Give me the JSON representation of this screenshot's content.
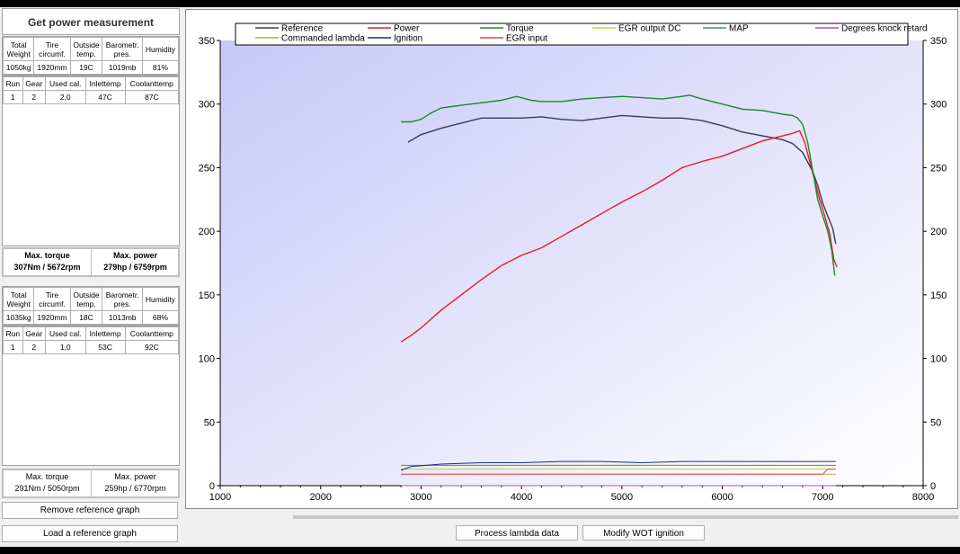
{
  "left_panel": {
    "title": "Get power measurement",
    "measurement_1": {
      "conditions": {
        "headers": [
          "Total\nWeight",
          "Tire\ncircumf.",
          "Outside\ntemp.",
          "Barometr.\npres.",
          "Humidity"
        ],
        "values": [
          "1050kg",
          "1920mm",
          "19C",
          "1019mb",
          "81%"
        ]
      },
      "run": {
        "headers": [
          "Run",
          "Gear",
          "Used cal.",
          "Inlettemp",
          "Coolanttemp"
        ],
        "values": [
          "1",
          "2",
          "2,0",
          "47C",
          "87C"
        ]
      },
      "max_torque_label": "Max. torque",
      "max_torque_value": "307Nm / 5672rpm",
      "max_power_label": "Max. power",
      "max_power_value": "279hp / 6759rpm"
    },
    "measurement_2": {
      "conditions": {
        "headers": [
          "Total\nWeight",
          "Tire\ncircumf.",
          "Outside\ntemp.",
          "Barometr.\npres.",
          "Humidity"
        ],
        "values": [
          "1035kg",
          "1920mm",
          "18C",
          "1013mb",
          "68%"
        ]
      },
      "run": {
        "headers": [
          "Run",
          "Gear",
          "Used cal.",
          "Inlettemp",
          "Coolanttemp"
        ],
        "values": [
          "1",
          "2",
          "1,0",
          "53C",
          "92C"
        ]
      },
      "max_torque_label": "Max. torque",
      "max_torque_value": "291Nm / 5050rpm",
      "max_power_label": "Max. power",
      "max_power_value": "259hp / 6770rpm"
    },
    "remove_reference_label": "Remove reference graph",
    "load_reference_label": "Load a reference graph"
  },
  "bottom_buttons": {
    "process_lambda_label": "Process lambda data",
    "modify_wot_label": "Modify WOT ignition"
  },
  "chart_data": {
    "type": "line",
    "title": "",
    "xlabel": "",
    "ylabel": "",
    "xlim": [
      1000,
      8000
    ],
    "ylim": [
      0,
      350
    ],
    "x_ticks": [
      1000,
      2000,
      3000,
      4000,
      5000,
      6000,
      7000,
      8000
    ],
    "y_ticks": [
      0,
      50,
      100,
      150,
      200,
      250,
      300,
      350
    ],
    "grid": false,
    "legend_position": "top",
    "colors": {
      "background_top": "#c8c8f8",
      "background_bottom": "#ffffff"
    },
    "series": [
      {
        "name": "Reference",
        "color": "#3a3a4e",
        "x": [
          2870,
          3000,
          3200,
          3400,
          3600,
          3800,
          4000,
          4200,
          4400,
          4600,
          4800,
          5000,
          5200,
          5400,
          5600,
          5800,
          6000,
          6200,
          6400,
          6600,
          6700,
          6800,
          6900,
          6950,
          7000,
          7050,
          7100,
          7130
        ],
        "y": [
          270,
          276,
          281,
          285,
          289,
          289,
          289,
          290,
          288,
          287,
          289,
          291,
          290,
          289,
          289,
          287,
          283,
          278,
          275,
          272,
          269,
          262,
          247,
          236,
          222,
          212,
          202,
          190
        ]
      },
      {
        "name": "Power",
        "color": "#e81c24",
        "x": [
          2800,
          2900,
          3000,
          3200,
          3400,
          3600,
          3800,
          4000,
          4200,
          4400,
          4600,
          4800,
          5000,
          5200,
          5400,
          5600,
          5800,
          6000,
          6200,
          6400,
          6600,
          6700,
          6770,
          6820,
          6870,
          6920,
          6970,
          7020,
          7070,
          7110,
          7140
        ],
        "y": [
          113,
          118,
          124,
          138,
          150,
          162,
          173,
          181,
          187,
          196,
          205,
          214,
          223,
          231,
          240,
          250,
          255,
          259,
          265,
          271,
          275,
          277,
          279,
          270,
          255,
          240,
          225,
          212,
          198,
          178,
          172
        ]
      },
      {
        "name": "Torque",
        "color": "#1a8a2a",
        "x": [
          2800,
          2900,
          3000,
          3100,
          3200,
          3400,
          3600,
          3800,
          3950,
          4100,
          4200,
          4400,
          4600,
          4800,
          5000,
          5200,
          5400,
          5600,
          5672,
          5800,
          6000,
          6200,
          6400,
          6600,
          6700,
          6750,
          6800,
          6850,
          6900,
          6950,
          7000,
          7050,
          7090,
          7120
        ],
        "y": [
          286,
          286,
          288,
          293,
          297,
          299,
          301,
          303,
          306,
          303,
          302,
          302,
          304,
          305,
          306,
          305,
          304,
          306,
          307,
          304,
          300,
          296,
          295,
          292,
          291,
          289,
          284,
          270,
          248,
          225,
          212,
          200,
          185,
          165
        ]
      },
      {
        "name": "EGR output DC",
        "color": "#c8d23c",
        "x": [
          2800,
          3000,
          4000,
          5000,
          6000,
          7000,
          7130
        ],
        "y": [
          13,
          13,
          13,
          13,
          13,
          13,
          13
        ]
      },
      {
        "name": "MAP",
        "color": "#3a9a4a",
        "x": [
          2800,
          3000,
          3500,
          4000,
          4500,
          5000,
          5500,
          6000,
          6500,
          7000,
          7130
        ],
        "y": [
          16,
          16,
          16,
          16,
          16,
          16,
          16,
          16,
          16,
          16,
          16
        ]
      },
      {
        "name": "Degrees knock retard",
        "color": "#b04cb4",
        "x": [
          2800,
          3000,
          4000,
          5000,
          6000,
          7000,
          7130
        ],
        "y": [
          0,
          0,
          0,
          0,
          0,
          0,
          0
        ]
      },
      {
        "name": "Commanded lambda",
        "color": "#b4ae46",
        "x": [
          2800,
          3000,
          4000,
          5000,
          6000,
          7000,
          7130
        ],
        "y": [
          9,
          9,
          9,
          9,
          9,
          9,
          9
        ]
      },
      {
        "name": "Ignition",
        "color": "#1c2a8a",
        "x": [
          2800,
          2900,
          3200,
          3600,
          4000,
          4400,
          4800,
          5200,
          5600,
          6000,
          6400,
          6800,
          7130
        ],
        "y": [
          12,
          15,
          17,
          18,
          18,
          19,
          19,
          18,
          19,
          19,
          19,
          19,
          19
        ]
      },
      {
        "name": "EGR input",
        "color": "#e8474e",
        "x": [
          2800,
          3000,
          4000,
          5000,
          6000,
          6500,
          7000,
          7050,
          7130
        ],
        "y": [
          9,
          9,
          9,
          9,
          9,
          9,
          9,
          13,
          13
        ]
      }
    ]
  }
}
